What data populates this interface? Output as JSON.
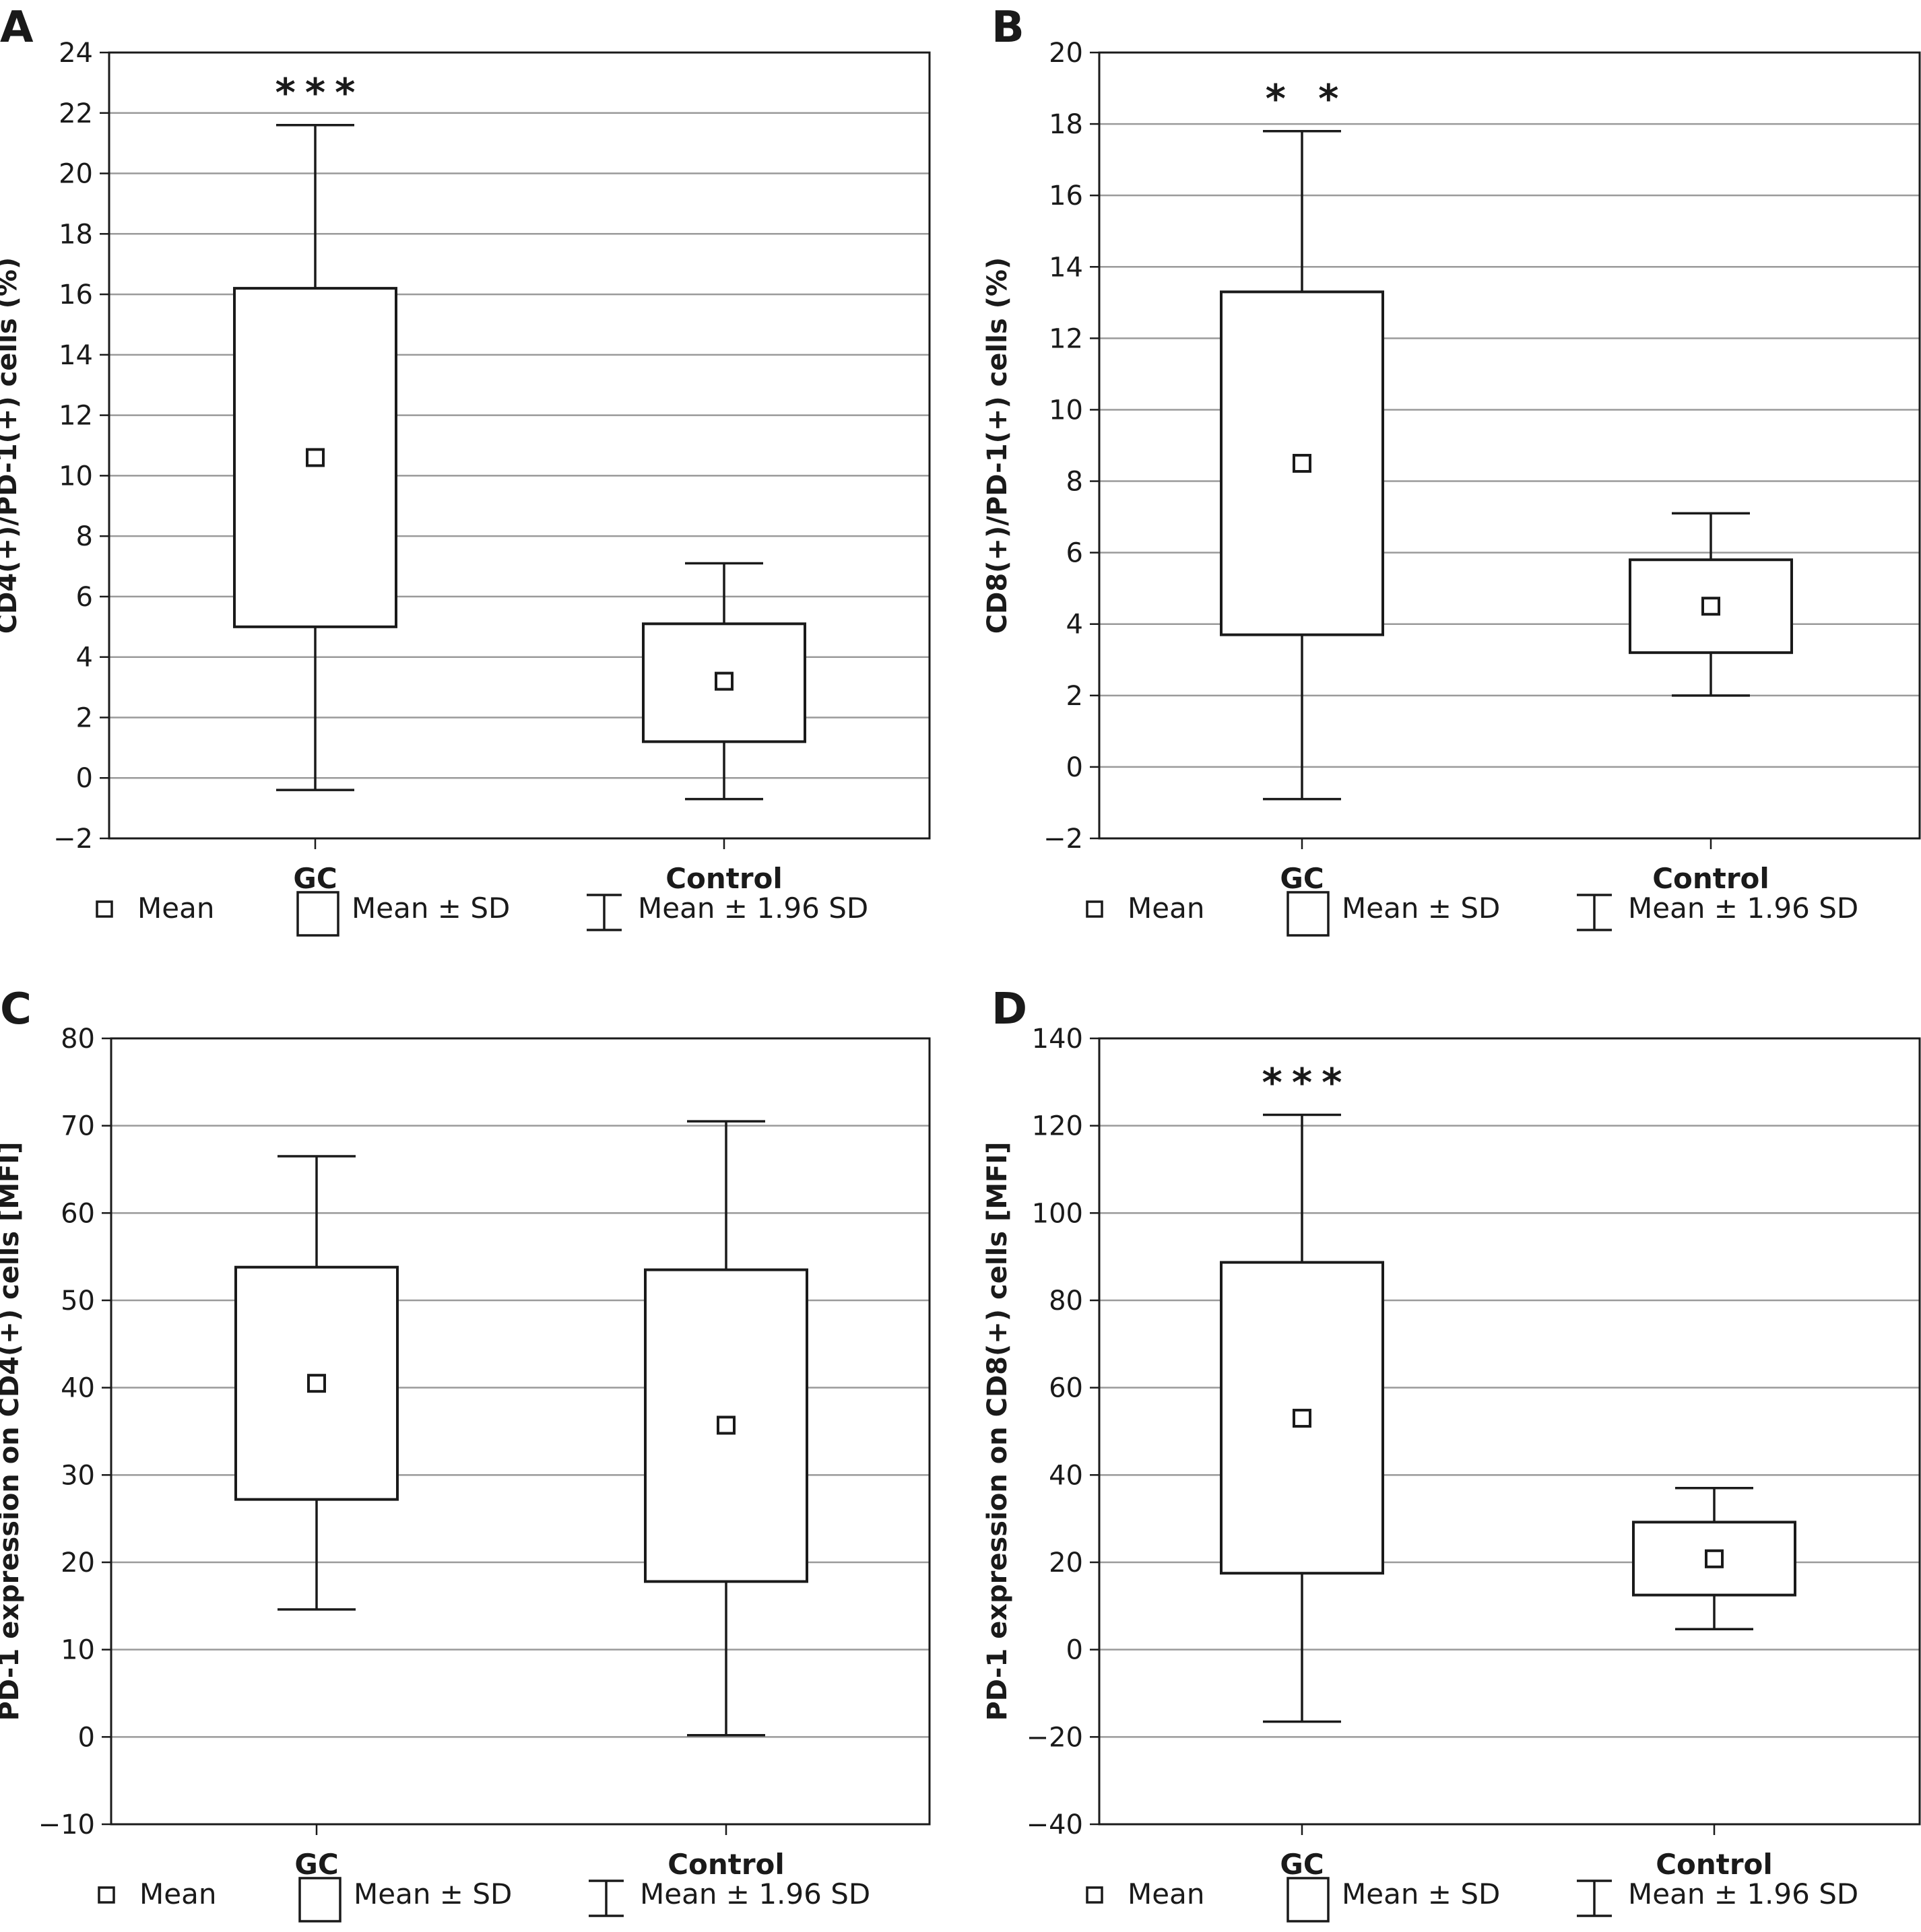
{
  "chart_data": [
    {
      "panel": "A",
      "type": "box",
      "ylabel": "CD4(+)/PD-1(+) cells (%)",
      "ylim": [
        -2,
        24
      ],
      "yticks": [
        -2,
        0,
        2,
        4,
        6,
        8,
        10,
        12,
        14,
        16,
        18,
        20,
        22,
        24
      ],
      "grid": true,
      "categories": [
        "GC",
        "Control"
      ],
      "groups": [
        {
          "category": "GC",
          "mean": 10.6,
          "mean_minus_sd": 5.0,
          "mean_plus_sd": 16.2,
          "mean_minus_1_96sd": -0.4,
          "mean_plus_1_96sd": 21.6,
          "significance": "***"
        },
        {
          "category": "Control",
          "mean": 3.2,
          "mean_minus_sd": 1.2,
          "mean_plus_sd": 5.1,
          "mean_minus_1_96sd": -0.7,
          "mean_plus_1_96sd": 7.1,
          "significance": ""
        }
      ],
      "legend": [
        "Mean",
        "Mean ± SD",
        "Mean ± 1.96 SD"
      ]
    },
    {
      "panel": "B",
      "type": "box",
      "ylabel": "CD8(+)/PD-1(+) cells (%)",
      "ylim": [
        -2,
        20
      ],
      "yticks": [
        -2,
        0,
        2,
        4,
        6,
        8,
        10,
        12,
        14,
        16,
        18,
        20
      ],
      "grid": true,
      "categories": [
        "GC",
        "Control"
      ],
      "groups": [
        {
          "category": "GC",
          "mean": 8.5,
          "mean_minus_sd": 3.7,
          "mean_plus_sd": 13.3,
          "mean_minus_1_96sd": -0.9,
          "mean_plus_1_96sd": 17.8,
          "significance": "* *"
        },
        {
          "category": "Control",
          "mean": 4.5,
          "mean_minus_sd": 3.2,
          "mean_plus_sd": 5.8,
          "mean_minus_1_96sd": 2.0,
          "mean_plus_1_96sd": 7.1,
          "significance": ""
        }
      ],
      "legend": [
        "Mean",
        "Mean ± SD",
        "Mean ± 1.96 SD"
      ]
    },
    {
      "panel": "C",
      "type": "box",
      "ylabel": "PD-1 expression on CD4(+) cells [MFI]",
      "ylim": [
        -10,
        80
      ],
      "yticks": [
        -10,
        0,
        10,
        20,
        30,
        40,
        50,
        60,
        70,
        80
      ],
      "grid": true,
      "categories": [
        "GC",
        "Control"
      ],
      "groups": [
        {
          "category": "GC",
          "mean": 40.5,
          "mean_minus_sd": 27.2,
          "mean_plus_sd": 53.8,
          "mean_minus_1_96sd": 14.6,
          "mean_plus_1_96sd": 66.5,
          "significance": ""
        },
        {
          "category": "Control",
          "mean": 35.7,
          "mean_minus_sd": 17.8,
          "mean_plus_sd": 53.5,
          "mean_minus_1_96sd": 0.2,
          "mean_plus_1_96sd": 70.5,
          "significance": ""
        }
      ],
      "legend": [
        "Mean",
        "Mean ± SD",
        "Mean ± 1.96 SD"
      ]
    },
    {
      "panel": "D",
      "type": "box",
      "ylabel": "PD-1 expression on CD8(+) cells [MFI]",
      "ylim": [
        -40,
        140
      ],
      "yticks": [
        -40,
        -20,
        0,
        20,
        40,
        60,
        80,
        100,
        120,
        140
      ],
      "grid": true,
      "categories": [
        "GC",
        "Control"
      ],
      "groups": [
        {
          "category": "GC",
          "mean": 53,
          "mean_minus_sd": 17.5,
          "mean_plus_sd": 88.7,
          "mean_minus_1_96sd": -16.5,
          "mean_plus_1_96sd": 122.5,
          "significance": "***"
        },
        {
          "category": "Control",
          "mean": 20.8,
          "mean_minus_sd": 12.5,
          "mean_plus_sd": 29.2,
          "mean_minus_1_96sd": 4.7,
          "mean_plus_1_96sd": 37,
          "significance": ""
        }
      ],
      "legend": [
        "Mean",
        "Mean ± SD",
        "Mean ± 1.96 SD"
      ]
    }
  ]
}
